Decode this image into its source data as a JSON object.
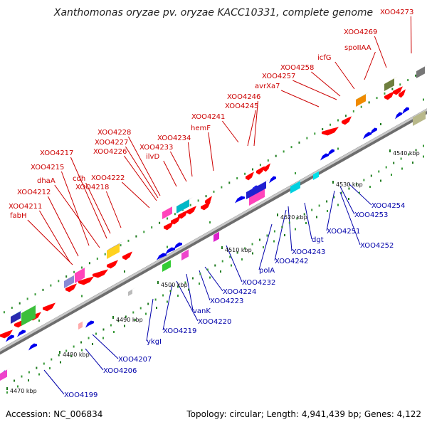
{
  "title": "Xanthomonas oryzae pv. oryzae KACC10331, complete genome",
  "footer": {
    "accession": "Accession: NC_006834",
    "stats": "Topology: circular; Length: 4,941,439 bp; Genes: 4,122"
  },
  "colors": {
    "forward_label": "#cc0000",
    "reverse_label": "#0000aa",
    "axis": "#999999",
    "forward_gene": "#ff0000",
    "reverse_gene": "#0000ee"
  },
  "kbp_ticks": [
    "4470 kbp",
    "4480 kbp",
    "4490 kbp",
    "4500 kbp",
    "4510 kbp",
    "4520 kbp",
    "4530 kbp",
    "4540 kbp"
  ],
  "forward_labels": [
    "XOO4273",
    "XOO4269",
    "spoIIAA",
    "icfG",
    "XOO4258",
    "XOO4257",
    "avrXa7",
    "XOO4246",
    "XOO4245",
    "XOO4241",
    "hemF",
    "XOO4234",
    "XOO4233",
    "ilvD",
    "XOO4228",
    "XOO4227",
    "XOO4226",
    "XOO4222",
    "XOO4218",
    "cdh",
    "XOO4217",
    "XOO4215",
    "dhaA",
    "XOO4212",
    "XOO4211",
    "fabH"
  ],
  "reverse_labels": [
    "XOO4254",
    "XOO4253",
    "XOO4251",
    "XOO4252",
    "dgt",
    "XOO4243",
    "XOO4242",
    "polA",
    "XOO4232",
    "XOO4224",
    "XOO4223",
    "vanK",
    "XOO4220",
    "XOO4219",
    "ykgI",
    "XOO4207",
    "XOO4206",
    "XOO4199"
  ]
}
